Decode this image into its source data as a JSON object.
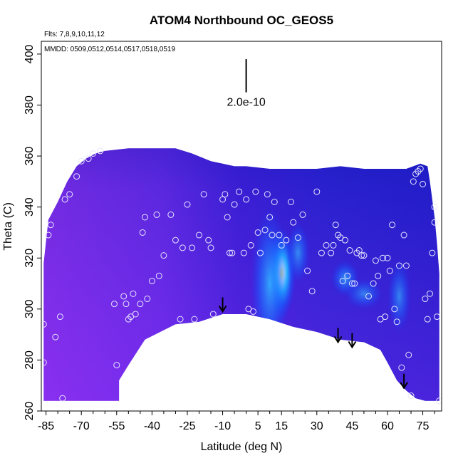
{
  "chart_data": {
    "type": "heatmap",
    "title": "ATOM4 Northbound OC_GEOS5",
    "xlabel": "Latitude (deg N)",
    "ylabel": "Theta (C)",
    "xlim": [
      -87,
      83
    ],
    "ylim": [
      260,
      405
    ],
    "x_ticks": [
      -85,
      -70,
      -55,
      -40,
      -25,
      -10,
      5,
      15,
      30,
      45,
      60,
      75
    ],
    "y_ticks": [
      260,
      280,
      300,
      320,
      340,
      360,
      380,
      400
    ],
    "annotations": {
      "flights": "Flts: 7,8,9,10,11,12",
      "dates": "MMDD: 0509,0512,0514,0517,0518,0519"
    },
    "scale_bar": {
      "label": "2.0e-10",
      "lat": 0,
      "theta_bottom": 385,
      "theta_top": 398
    },
    "colors": {
      "low": "#8a2be2",
      "mid": "#1010d0",
      "high": "#00bfff",
      "peak": "#ffe34d",
      "marker": "#e6e6ff"
    },
    "boundary_top": [
      [
        -86,
        318
      ],
      [
        -84,
        335
      ],
      [
        -80,
        342
      ],
      [
        -76,
        350
      ],
      [
        -72,
        356
      ],
      [
        -68,
        359
      ],
      [
        -64,
        361
      ],
      [
        -60,
        362
      ],
      [
        -50,
        363
      ],
      [
        -40,
        363
      ],
      [
        -30,
        363
      ],
      [
        -23,
        361
      ],
      [
        -15,
        358
      ],
      [
        -10,
        357
      ],
      [
        -5,
        356
      ],
      [
        0,
        356
      ],
      [
        10,
        355
      ],
      [
        20,
        355
      ],
      [
        30,
        355
      ],
      [
        40,
        356
      ],
      [
        50,
        355
      ],
      [
        60,
        355
      ],
      [
        68,
        355
      ],
      [
        74,
        357
      ],
      [
        77,
        356
      ],
      [
        78,
        350
      ],
      [
        79,
        343
      ],
      [
        80,
        336
      ],
      [
        81,
        326
      ],
      [
        82,
        314
      ],
      [
        82,
        264
      ]
    ],
    "boundary_bottom": [
      [
        -86,
        264
      ],
      [
        -54,
        264
      ],
      [
        -54,
        272
      ],
      [
        -50,
        278
      ],
      [
        -43,
        288
      ],
      [
        -30,
        294
      ],
      [
        -20,
        295
      ],
      [
        -10,
        298
      ],
      [
        0,
        298
      ],
      [
        10,
        296
      ],
      [
        20,
        293
      ],
      [
        30,
        291
      ],
      [
        40,
        288
      ],
      [
        50,
        287
      ],
      [
        57,
        284
      ],
      [
        60,
        279
      ],
      [
        64,
        272
      ],
      [
        68,
        268
      ],
      [
        72,
        265
      ],
      [
        76,
        264
      ],
      [
        82,
        264
      ]
    ],
    "hotspots": [
      {
        "lat": 15,
        "theta": 314,
        "intensity": 1.0,
        "rx": 6,
        "ry": 18
      },
      {
        "lat": 10,
        "theta": 310,
        "intensity": 0.8,
        "rx": 8,
        "ry": 30
      },
      {
        "lat": 42,
        "theta": 312,
        "intensity": 0.55,
        "rx": 6,
        "ry": 7
      },
      {
        "lat": 22,
        "theta": 322,
        "intensity": 0.45,
        "rx": 5,
        "ry": 12
      },
      {
        "lat": 65,
        "theta": 305,
        "intensity": 0.35,
        "rx": 5,
        "ry": 14
      },
      {
        "lat": 50,
        "theta": 306,
        "intensity": 0.3,
        "rx": 8,
        "ry": 6
      }
    ],
    "samples": [
      [
        -86,
        294
      ],
      [
        -86,
        279
      ],
      [
        -84,
        329
      ],
      [
        -83,
        333
      ],
      [
        -81,
        289
      ],
      [
        -79,
        297
      ],
      [
        -78,
        265
      ],
      [
        -77,
        343
      ],
      [
        -75,
        345
      ],
      [
        -72,
        352
      ],
      [
        -70,
        358
      ],
      [
        -67,
        359
      ],
      [
        -65,
        361
      ],
      [
        -62,
        362
      ],
      [
        -56,
        302
      ],
      [
        -55,
        278
      ],
      [
        -52,
        305
      ],
      [
        -51,
        302
      ],
      [
        -50,
        296
      ],
      [
        -49,
        297
      ],
      [
        -48,
        306
      ],
      [
        -47,
        298
      ],
      [
        -45,
        302
      ],
      [
        -44,
        330
      ],
      [
        -43,
        336
      ],
      [
        -42,
        304
      ],
      [
        -40,
        311
      ],
      [
        -38,
        337
      ],
      [
        -37,
        313
      ],
      [
        -35,
        321
      ],
      [
        -32,
        337
      ],
      [
        -30,
        327
      ],
      [
        -28,
        296
      ],
      [
        -27,
        324
      ],
      [
        -25,
        341
      ],
      [
        -23,
        324
      ],
      [
        -22,
        296
      ],
      [
        -20,
        329
      ],
      [
        -18,
        345
      ],
      [
        -16,
        327
      ],
      [
        -15,
        324
      ],
      [
        -14,
        298
      ],
      [
        -10,
        343
      ],
      [
        -9,
        345
      ],
      [
        -8,
        336
      ],
      [
        -7,
        322
      ],
      [
        -6,
        322
      ],
      [
        -5,
        341
      ],
      [
        -3,
        346
      ],
      [
        -1,
        322
      ],
      [
        0,
        343
      ],
      [
        1,
        300
      ],
      [
        2,
        325
      ],
      [
        3,
        299
      ],
      [
        4,
        346
      ],
      [
        5,
        330
      ],
      [
        6,
        322
      ],
      [
        8,
        331
      ],
      [
        9,
        345
      ],
      [
        10,
        336
      ],
      [
        11,
        329
      ],
      [
        12,
        342
      ],
      [
        14,
        329
      ],
      [
        15,
        325
      ],
      [
        17,
        327
      ],
      [
        19,
        342
      ],
      [
        20,
        334
      ],
      [
        22,
        328
      ],
      [
        24,
        337
      ],
      [
        26,
        315
      ],
      [
        28,
        307
      ],
      [
        30,
        346
      ],
      [
        32,
        322
      ],
      [
        34,
        325
      ],
      [
        36,
        322
      ],
      [
        37,
        325
      ],
      [
        38,
        333
      ],
      [
        39,
        329
      ],
      [
        40,
        328
      ],
      [
        41,
        311
      ],
      [
        42,
        327
      ],
      [
        43,
        313
      ],
      [
        44,
        323
      ],
      [
        45,
        310
      ],
      [
        46,
        310
      ],
      [
        47,
        322
      ],
      [
        48,
        323
      ],
      [
        49,
        321
      ],
      [
        50,
        321
      ],
      [
        52,
        305
      ],
      [
        54,
        310
      ],
      [
        55,
        319
      ],
      [
        56,
        313
      ],
      [
        57,
        296
      ],
      [
        58,
        320
      ],
      [
        59,
        297
      ],
      [
        60,
        320
      ],
      [
        61,
        315
      ],
      [
        62,
        333
      ],
      [
        63,
        300
      ],
      [
        64,
        295
      ],
      [
        65,
        317
      ],
      [
        66,
        277
      ],
      [
        67,
        329
      ],
      [
        68,
        317
      ],
      [
        69,
        282
      ],
      [
        70,
        266
      ],
      [
        71,
        350
      ],
      [
        72,
        353
      ],
      [
        73,
        354
      ],
      [
        74,
        355
      ],
      [
        75,
        349
      ],
      [
        76,
        304
      ],
      [
        77,
        296
      ],
      [
        78,
        306
      ],
      [
        79,
        322
      ],
      [
        80,
        340
      ],
      [
        80,
        334
      ],
      [
        81,
        297
      ],
      [
        82,
        264
      ]
    ],
    "arrows": [
      {
        "lat": -10,
        "theta": 299
      },
      {
        "lat": 39,
        "theta": 287
      },
      {
        "lat": 45,
        "theta": 285
      },
      {
        "lat": 67,
        "theta": 269
      }
    ]
  }
}
